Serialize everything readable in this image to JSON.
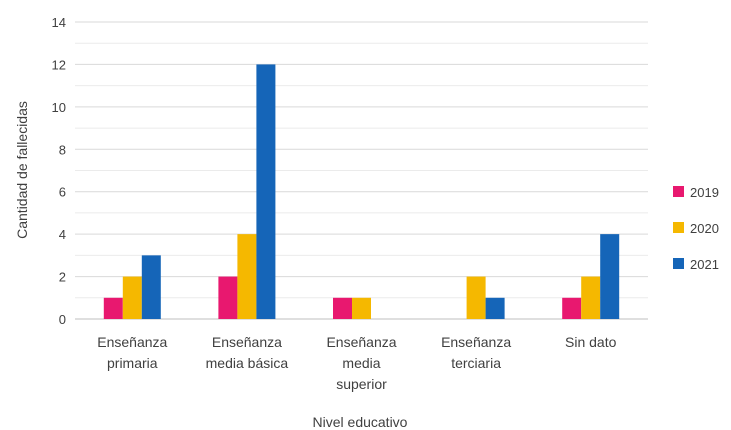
{
  "chart_data": {
    "type": "bar",
    "title": "",
    "xlabel": "Nivel educativo",
    "ylabel": "Cantidad de fallecidas",
    "ylim": [
      0,
      14
    ],
    "yticks": [
      0,
      2,
      4,
      6,
      8,
      10,
      12,
      14
    ],
    "grid": true,
    "legend_position": "right",
    "categories": [
      [
        "Enseñanza",
        "primaria"
      ],
      [
        "Enseñanza",
        "media básica"
      ],
      [
        "Enseñanza",
        "media",
        "superior"
      ],
      [
        "Enseñanza",
        "terciaria"
      ],
      [
        "Sin dato"
      ]
    ],
    "series": [
      {
        "name": "2019",
        "color": "#e8186f",
        "values": [
          1,
          2,
          1,
          0,
          1
        ]
      },
      {
        "name": "2020",
        "color": "#f5b800",
        "values": [
          2,
          4,
          1,
          2,
          2
        ]
      },
      {
        "name": "2021",
        "color": "#1565b8",
        "values": [
          3,
          12,
          0,
          1,
          4
        ]
      }
    ]
  }
}
